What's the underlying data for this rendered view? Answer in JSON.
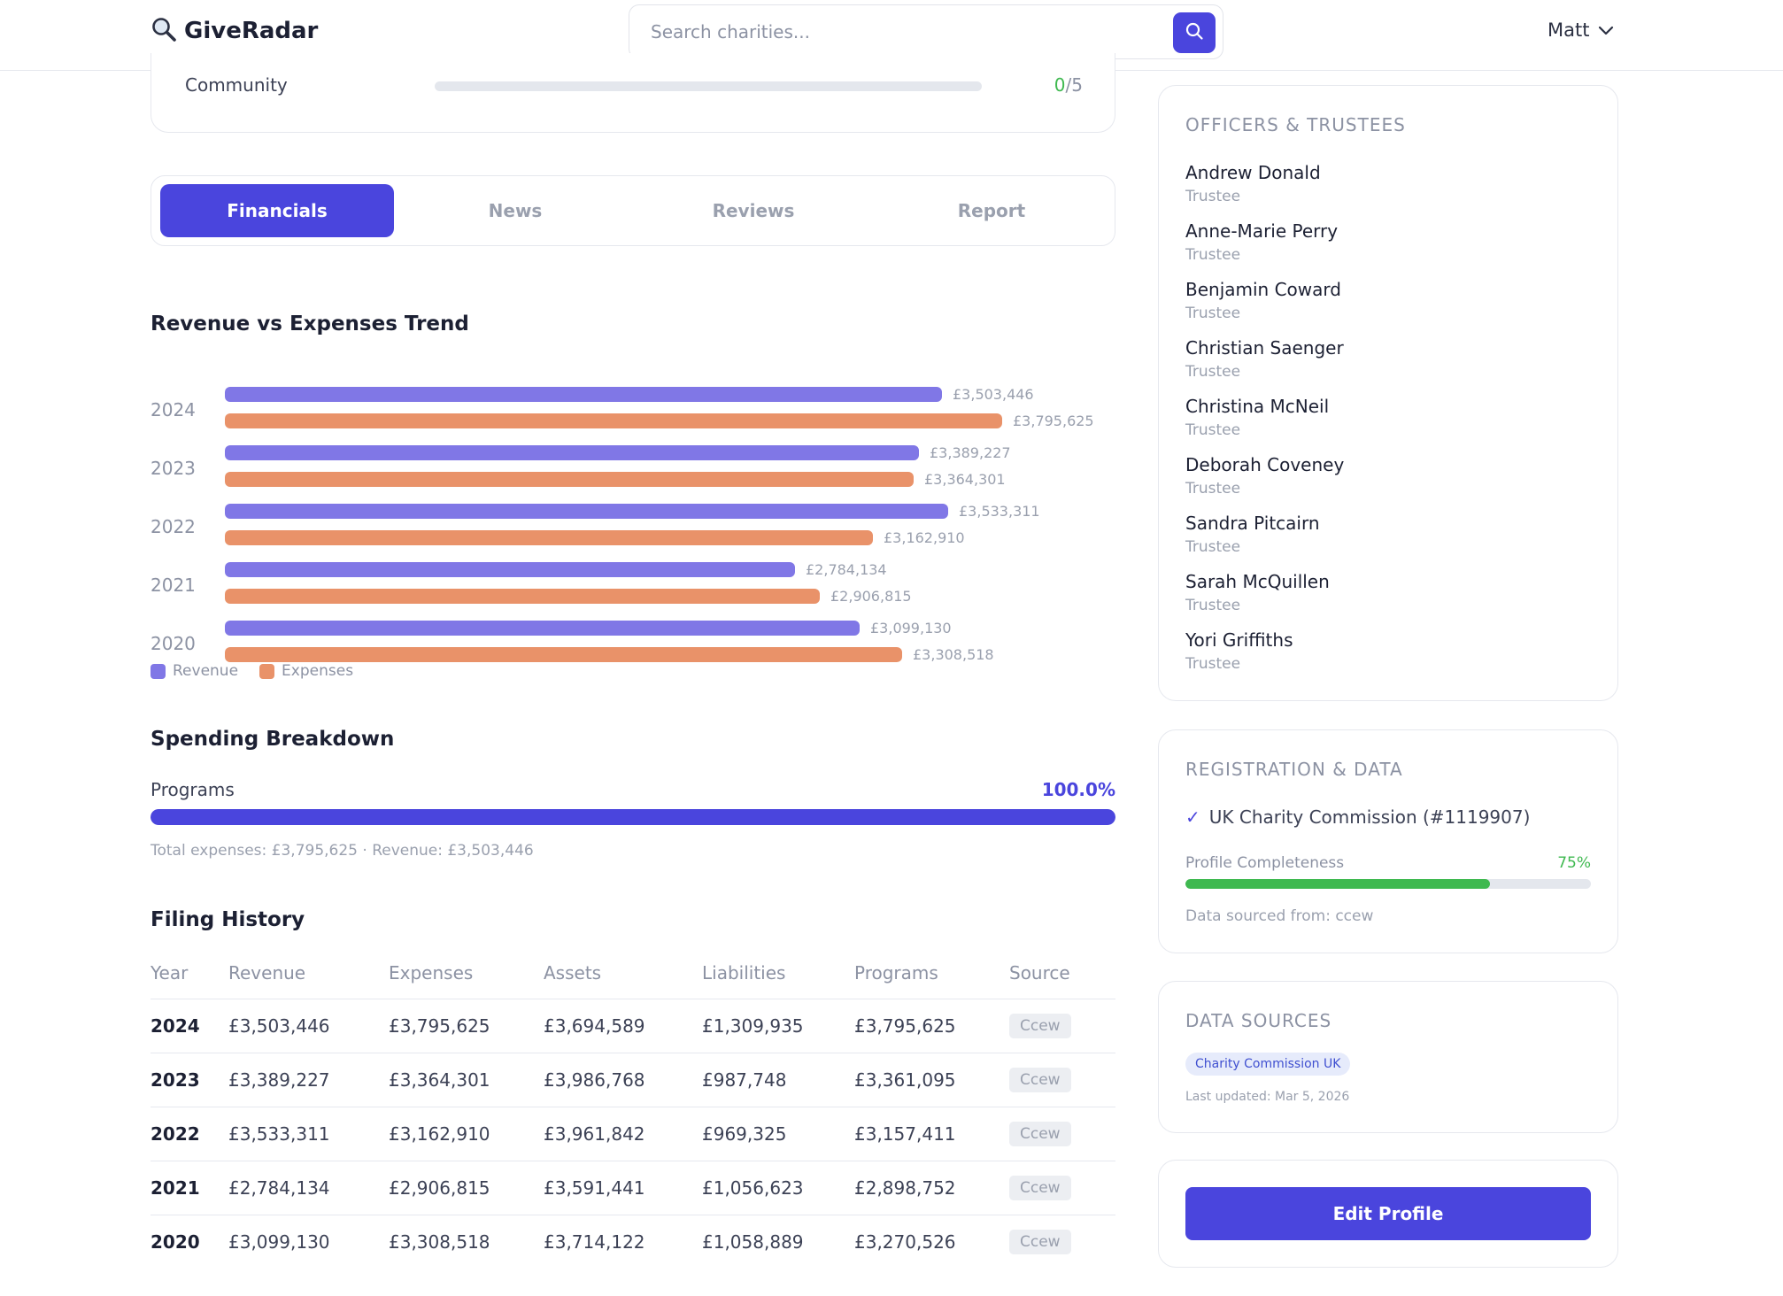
{
  "header": {
    "logo_text": "GiveRadar",
    "search_placeholder": "Search charities...",
    "user_name": "Matt"
  },
  "score": {
    "label": "Community",
    "value": "0",
    "max": "/5"
  },
  "tabs": [
    {
      "label": "Financials",
      "active": true
    },
    {
      "label": "News",
      "active": false
    },
    {
      "label": "Reviews",
      "active": false
    },
    {
      "label": "Report",
      "active": false
    }
  ],
  "trend": {
    "title": "Revenue vs Expenses Trend",
    "legend": {
      "revenue": "Revenue",
      "expenses": "Expenses"
    },
    "rows": [
      {
        "year": "2024",
        "revenue_label": "£3,503,446",
        "expenses_label": "£3,795,625"
      },
      {
        "year": "2023",
        "revenue_label": "£3,389,227",
        "expenses_label": "£3,364,301"
      },
      {
        "year": "2022",
        "revenue_label": "£3,533,311",
        "expenses_label": "£3,162,910"
      },
      {
        "year": "2021",
        "revenue_label": "£2,784,134",
        "expenses_label": "£2,906,815"
      },
      {
        "year": "2020",
        "revenue_label": "£3,099,130",
        "expenses_label": "£3,308,518"
      }
    ]
  },
  "spending": {
    "title": "Spending Breakdown",
    "label": "Programs",
    "pct_label": "100.0%",
    "pct": 100,
    "note": "Total expenses: £3,795,625 · Revenue: £3,503,446"
  },
  "filing": {
    "title": "Filing History",
    "headers": [
      "Year",
      "Revenue",
      "Expenses",
      "Assets",
      "Liabilities",
      "Programs",
      "Source"
    ],
    "rows": [
      [
        "2024",
        "£3,503,446",
        "£3,795,625",
        "£3,694,589",
        "£1,309,935",
        "£3,795,625",
        "Ccew"
      ],
      [
        "2023",
        "£3,389,227",
        "£3,364,301",
        "£3,986,768",
        "£987,748",
        "£3,361,095",
        "Ccew"
      ],
      [
        "2022",
        "£3,533,311",
        "£3,162,910",
        "£3,961,842",
        "£969,325",
        "£3,157,411",
        "Ccew"
      ],
      [
        "2021",
        "£2,784,134",
        "£2,906,815",
        "£3,591,441",
        "£1,056,623",
        "£2,898,752",
        "Ccew"
      ],
      [
        "2020",
        "£3,099,130",
        "£3,308,518",
        "£3,714,122",
        "£1,058,889",
        "£3,270,526",
        "Ccew"
      ]
    ]
  },
  "officers": {
    "heading": "OFFICERS & TRUSTEES",
    "list": [
      {
        "name": "Andrew Donald",
        "role": "Trustee"
      },
      {
        "name": "Anne-Marie Perry",
        "role": "Trustee"
      },
      {
        "name": "Benjamin Coward",
        "role": "Trustee"
      },
      {
        "name": "Christian Saenger",
        "role": "Trustee"
      },
      {
        "name": "Christina McNeil",
        "role": "Trustee"
      },
      {
        "name": "Deborah Coveney",
        "role": "Trustee"
      },
      {
        "name": "Sandra Pitcairn",
        "role": "Trustee"
      },
      {
        "name": "Sarah McQuillen",
        "role": "Trustee"
      },
      {
        "name": "Yori Griffiths",
        "role": "Trustee"
      }
    ]
  },
  "registration": {
    "heading": "REGISTRATION & DATA",
    "check_icon": "✓",
    "commission": "UK Charity Commission (#1119907)",
    "completeness_label": "Profile Completeness",
    "completeness_pct_label": "75%",
    "completeness_pct": 75,
    "source": "Data sourced from: ccew"
  },
  "data_sources": {
    "heading": "DATA SOURCES",
    "badge": "Charity Commission UK",
    "updated": "Last updated: Mar 5, 2026"
  },
  "actions": {
    "edit_label": "Edit Profile"
  },
  "colors": {
    "accent": "#4a45dd",
    "revenue": "#8077e6",
    "expenses": "#e99269",
    "success": "#3fb950"
  },
  "icons": {
    "logo": "magnifier-icon",
    "search": "search-icon",
    "user_menu": "chevron-down-icon"
  },
  "chart_data": {
    "type": "bar",
    "title": "Revenue vs Expenses Trend",
    "orientation": "horizontal",
    "categories": [
      "2024",
      "2023",
      "2022",
      "2021",
      "2020"
    ],
    "series": [
      {
        "name": "Revenue",
        "values": [
          3503446,
          3389227,
          3533311,
          2784134,
          3099130
        ]
      },
      {
        "name": "Expenses",
        "values": [
          3795625,
          3364301,
          3162910,
          2906815,
          3308518
        ]
      }
    ],
    "legend": "bottom-left",
    "grid": false
  }
}
